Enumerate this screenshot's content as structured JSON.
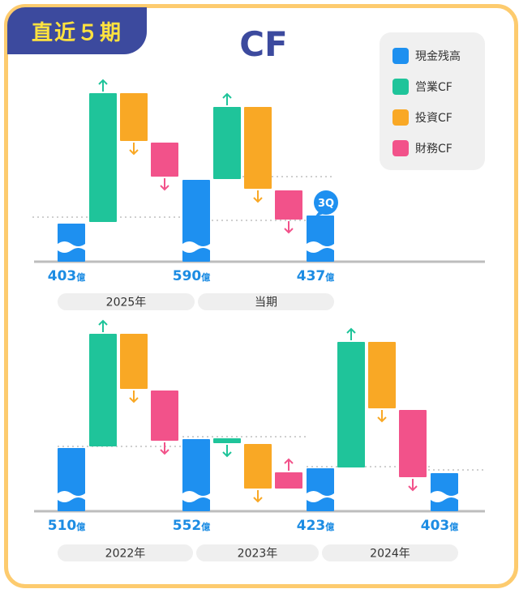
{
  "badge": "直近５期",
  "title": "CF",
  "legend": [
    {
      "label": "現金残高",
      "color": "#1E90F0"
    },
    {
      "label": "営業CF",
      "color": "#1FC49A"
    },
    {
      "label": "投資CF",
      "color": "#F9A825"
    },
    {
      "label": "財務CF",
      "color": "#F2528A"
    }
  ],
  "unit": "億",
  "colors": {
    "cash": "#1E90F0",
    "operating": "#1FC49A",
    "investing": "#F9A825",
    "financing": "#F2528A",
    "value_label": "#1C8CE3",
    "pill": "#EFEFEF"
  },
  "chart_data": [
    {
      "type": "waterfall",
      "rows": [
        {
          "kind": "cash",
          "value": 403,
          "label": "403"
        },
        {
          "kind": "operating",
          "direction": "up"
        },
        {
          "kind": "investing",
          "direction": "down"
        },
        {
          "kind": "financing",
          "direction": "down"
        },
        {
          "kind": "cash",
          "value": 590,
          "label": "590"
        },
        {
          "kind": "operating",
          "direction": "up"
        },
        {
          "kind": "investing",
          "direction": "down"
        },
        {
          "kind": "financing",
          "direction": "down"
        },
        {
          "kind": "cash",
          "value": 437,
          "label": "437",
          "badge": "3Q"
        }
      ],
      "periods": [
        "2025年",
        "当期"
      ]
    },
    {
      "type": "waterfall",
      "rows": [
        {
          "kind": "cash",
          "value": 510,
          "label": "510"
        },
        {
          "kind": "operating",
          "direction": "up"
        },
        {
          "kind": "investing",
          "direction": "down"
        },
        {
          "kind": "financing",
          "direction": "down"
        },
        {
          "kind": "cash",
          "value": 552,
          "label": "552"
        },
        {
          "kind": "operating",
          "direction": "down"
        },
        {
          "kind": "investing",
          "direction": "down"
        },
        {
          "kind": "financing",
          "direction": "up"
        },
        {
          "kind": "cash",
          "value": 423,
          "label": "423"
        },
        {
          "kind": "operating",
          "direction": "up"
        },
        {
          "kind": "investing",
          "direction": "down"
        },
        {
          "kind": "financing",
          "direction": "down"
        },
        {
          "kind": "cash",
          "value": 403,
          "label": "403"
        }
      ],
      "periods": [
        "2022年",
        "2023年",
        "2024年"
      ]
    }
  ]
}
